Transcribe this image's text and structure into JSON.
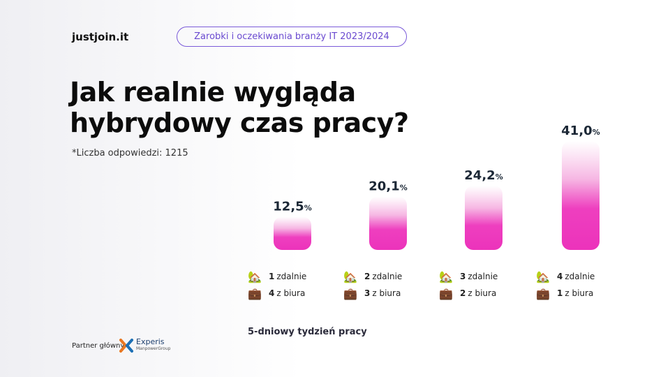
{
  "logo": "justjoin.it",
  "pill": "Zarobki i oczekiwania branży IT 2023/2024",
  "title_line1": "Jak realnie wygląda",
  "title_line2": "hybrydowy czas pracy?",
  "note": "*Liczba odpowiedzi: 1215",
  "xlabel": "5-dniowy tydzień pracy",
  "partner": "Partner główny",
  "experis": {
    "name": "Experis",
    "sub": "ManpowerGroup"
  },
  "colors": {
    "bar": "#ee3fbf",
    "bar_top": "#ffffff",
    "accent": "#7b5bd9"
  },
  "icons": {
    "remote": "house-with-garden-icon",
    "office": "briefcase-icon"
  },
  "chart_data": {
    "type": "bar",
    "categories": [
      "1 zdalnie / 4 z biura",
      "2 zdalnie / 3 z biura",
      "3 zdalnie / 2 z biura",
      "4 zdalnie / 1 z biura"
    ],
    "values": [
      12.5,
      20.1,
      24.2,
      41.0
    ],
    "value_labels": [
      "12,5",
      "20,1",
      "24,2",
      "41,0"
    ],
    "unit": "%",
    "xlabel": "5-dniowy tydzień pracy",
    "legend": [
      {
        "remote_n": "1",
        "remote_label": "zdalnie",
        "office_n": "4",
        "office_label": "z biura"
      },
      {
        "remote_n": "2",
        "remote_label": "zdalnie",
        "office_n": "3",
        "office_label": "z biura"
      },
      {
        "remote_n": "3",
        "remote_label": "zdalnie",
        "office_n": "2",
        "office_label": "z biura"
      },
      {
        "remote_n": "4",
        "remote_label": "zdalnie",
        "office_n": "1",
        "office_label": "z biura"
      }
    ]
  }
}
